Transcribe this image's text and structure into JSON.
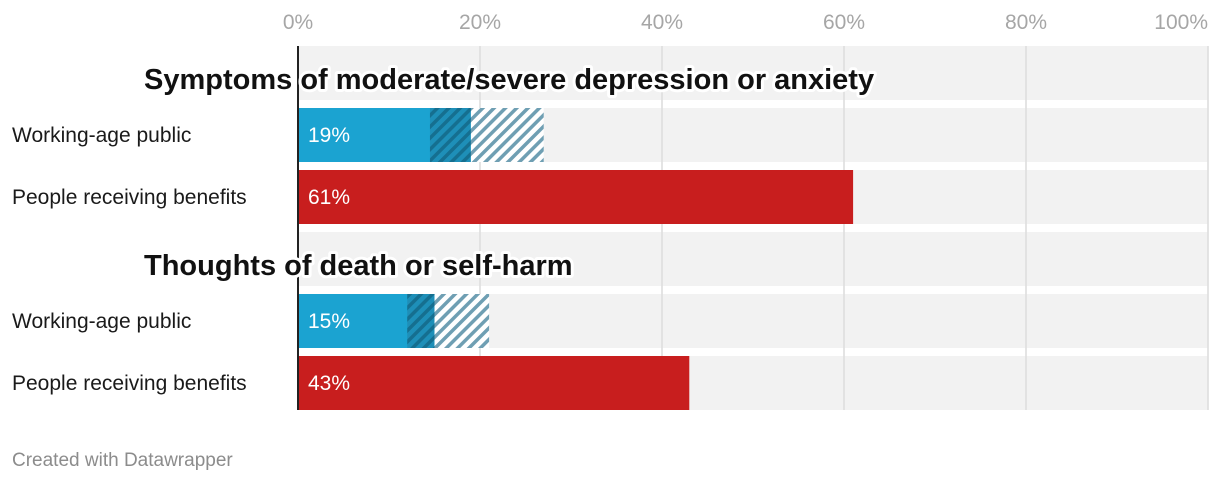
{
  "chart_data": {
    "type": "bar",
    "orientation": "horizontal",
    "xlim": [
      0,
      100
    ],
    "x_ticks": [
      0,
      20,
      40,
      60,
      80,
      100
    ],
    "x_tick_labels": [
      "0%",
      "20%",
      "40%",
      "60%",
      "80%",
      "100%"
    ],
    "grid": true,
    "colors": {
      "Working-age public": "#1ba3d1",
      "People receiving benefits": "#c81e1e",
      "range_hatch": "#6f9fb3",
      "track": "#f2f2f2"
    },
    "groups": [
      {
        "title": "Symptoms of moderate/severe depression or anxiety",
        "rows": [
          {
            "label": "Working-age public",
            "value": 19,
            "value_label": "19%",
            "range": [
              14.5,
              27
            ]
          },
          {
            "label": "People receiving benefits",
            "value": 61,
            "value_label": "61%"
          }
        ]
      },
      {
        "title": "Thoughts of death or self-harm",
        "rows": [
          {
            "label": "Working-age public",
            "value": 15,
            "value_label": "15%",
            "range": [
              12,
              21
            ]
          },
          {
            "label": "People receiving benefits",
            "value": 43,
            "value_label": "43%"
          }
        ]
      }
    ]
  },
  "footer": "Created with Datawrapper"
}
